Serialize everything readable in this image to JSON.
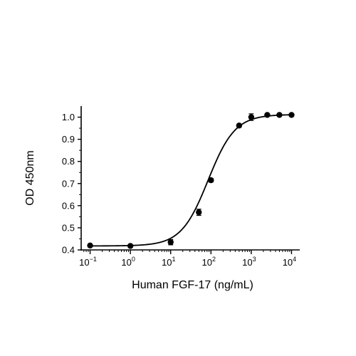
{
  "chart_data": {
    "type": "scatter",
    "xlabel": "Human FGF-17 (ng/mL)",
    "ylabel": "OD 450nm",
    "xscale": "log",
    "xlim": [
      0.06,
      16000
    ],
    "ylim": [
      0.4,
      1.05
    ],
    "x_ticks": [
      {
        "value": 0.1,
        "base": "10",
        "exp": "−1"
      },
      {
        "value": 1,
        "base": "10",
        "exp": "0"
      },
      {
        "value": 10,
        "base": "10",
        "exp": "1"
      },
      {
        "value": 100,
        "base": "10",
        "exp": "2"
      },
      {
        "value": 1000,
        "base": "10",
        "exp": "3"
      },
      {
        "value": 10000,
        "base": "10",
        "exp": "4"
      }
    ],
    "y_ticks": [
      "0.4",
      "0.5",
      "0.6",
      "0.7",
      "0.8",
      "0.9",
      "1.0"
    ],
    "grid": false,
    "legend": "none",
    "series": [
      {
        "x": [
          0.1,
          1,
          10,
          50,
          100,
          500,
          1000,
          2500,
          5000,
          10000
        ],
        "y": [
          0.42,
          0.418,
          0.435,
          0.57,
          0.715,
          0.962,
          1.0,
          1.01,
          1.01,
          1.01
        ],
        "error": [
          0.004,
          0.004,
          0.012,
          0.014,
          0.008,
          0.006,
          0.015,
          0.004,
          0.004,
          0.004
        ]
      }
    ],
    "fit": {
      "model": "4PL",
      "bottom": 0.418,
      "top": 1.012,
      "ec50": 85,
      "hill": 1.3
    }
  }
}
